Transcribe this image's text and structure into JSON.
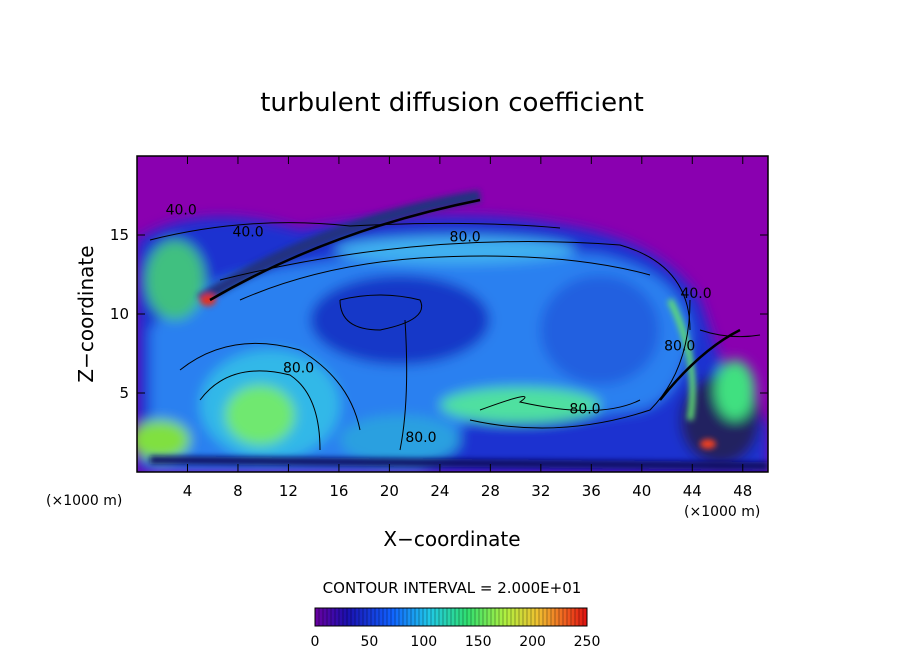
{
  "chart_data": {
    "type": "heatmap",
    "title": "turbulent diffusion coefficient",
    "xlabel": "X−coordinate",
    "ylabel": "Z−coordinate",
    "x_unit_left": "(×1000 m)",
    "x_unit_right": "(×1000 m)",
    "xlim": [
      0,
      50
    ],
    "ylim": [
      0,
      20
    ],
    "x_ticks": [
      4,
      8,
      12,
      16,
      20,
      24,
      28,
      32,
      36,
      40,
      44,
      48
    ],
    "x_tick_labels": [
      "4",
      "8",
      "12",
      "16",
      "20",
      "24",
      "28",
      "32",
      "36",
      "40",
      "44",
      "48"
    ],
    "y_ticks": [
      5,
      10,
      15
    ],
    "y_tick_labels": [
      "5",
      "10",
      "15"
    ],
    "contour_interval_text": "CONTOUR INTERVAL = 2.000E+01",
    "colorbar": {
      "range": [
        0,
        250
      ],
      "ticks": [
        0,
        50,
        100,
        150,
        200,
        250
      ],
      "tick_labels": [
        "0",
        "50",
        "100",
        "150",
        "200",
        "250"
      ]
    },
    "contour_labels": [
      {
        "text": "40.0",
        "x": 3.5,
        "y": 16.3
      },
      {
        "text": "40.0",
        "x": 8.8,
        "y": 14.9
      },
      {
        "text": "80.0",
        "x": 26.0,
        "y": 14.6
      },
      {
        "text": "80.0",
        "x": 12.8,
        "y": 6.3
      },
      {
        "text": "80.0",
        "x": 35.5,
        "y": 3.7
      },
      {
        "text": "80.0",
        "x": 22.5,
        "y": 1.9
      },
      {
        "text": "40.0",
        "x": 44.3,
        "y": 11.0
      },
      {
        "text": "80.0",
        "x": 43.0,
        "y": 7.7
      }
    ],
    "colors": {
      "background": "#8a00b0",
      "low": "#1a18c8",
      "mid": "#1e90ff",
      "high": "#66ee66"
    }
  }
}
